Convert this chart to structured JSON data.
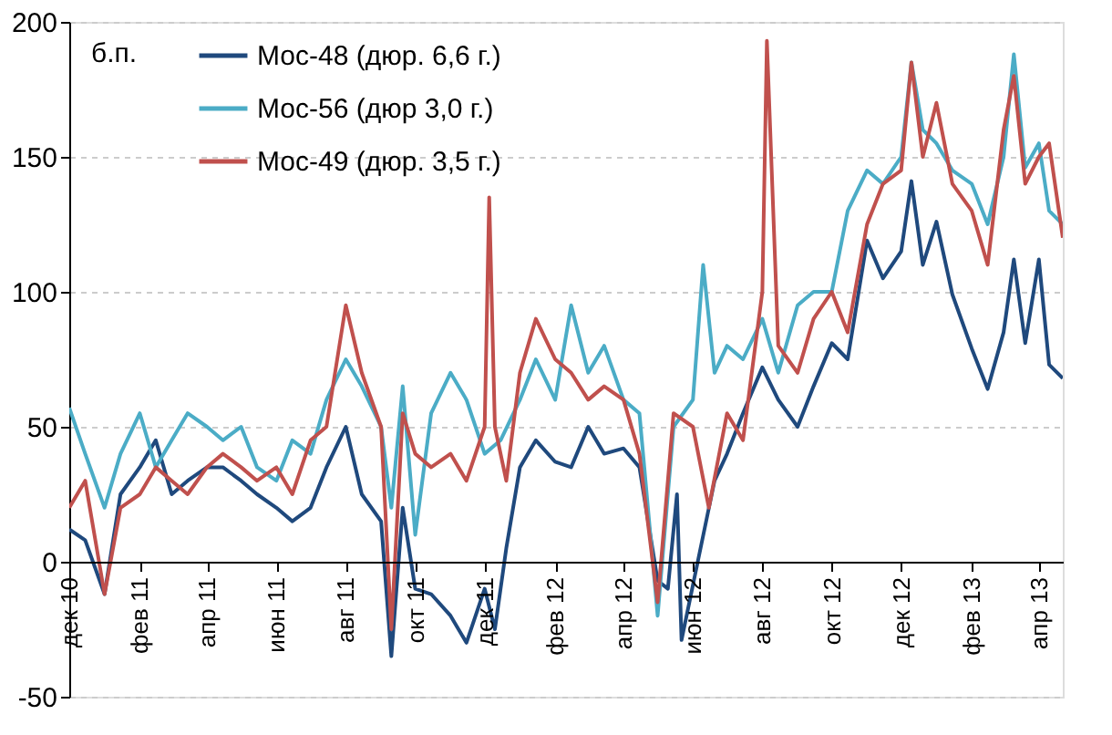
{
  "chart_data": {
    "type": "line",
    "ylabel": "б.п.",
    "xlim": [
      "2010-12-01",
      "2013-04-22"
    ],
    "ylim": [
      -50,
      200
    ],
    "yticks": [
      -50,
      0,
      50,
      100,
      150,
      200
    ],
    "xticks": [
      {
        "value": "2010-12-01",
        "label": "дек 10"
      },
      {
        "value": "2011-02-01",
        "label": "фев 11"
      },
      {
        "value": "2011-04-01",
        "label": "апр 11"
      },
      {
        "value": "2011-06-01",
        "label": "июн 11"
      },
      {
        "value": "2011-08-01",
        "label": "авг 11"
      },
      {
        "value": "2011-10-01",
        "label": "окт 11"
      },
      {
        "value": "2011-12-01",
        "label": "дек 11"
      },
      {
        "value": "2012-02-01",
        "label": "фев 12"
      },
      {
        "value": "2012-04-01",
        "label": "апр 12"
      },
      {
        "value": "2012-06-01",
        "label": "июн 12"
      },
      {
        "value": "2012-08-01",
        "label": "авг 12"
      },
      {
        "value": "2012-10-01",
        "label": "окт 12"
      },
      {
        "value": "2012-12-01",
        "label": "дек 12"
      },
      {
        "value": "2013-02-01",
        "label": "фев 13"
      },
      {
        "value": "2013-04-01",
        "label": "апр 13"
      }
    ],
    "grid": "y",
    "legend": "top left",
    "line_style": "solid",
    "series": [
      {
        "name": "Мос-48 (дюр. 6,6 г.)",
        "color": "#1f497d",
        "x": [
          "2010-12-01",
          "2010-12-15",
          "2011-01-01",
          "2011-01-15",
          "2011-02-01",
          "2011-02-15",
          "2011-03-01",
          "2011-03-15",
          "2011-04-01",
          "2011-04-15",
          "2011-05-01",
          "2011-05-15",
          "2011-06-01",
          "2011-06-15",
          "2011-07-01",
          "2011-07-15",
          "2011-08-01",
          "2011-08-15",
          "2011-09-01",
          "2011-09-10",
          "2011-09-20",
          "2011-10-01",
          "2011-10-15",
          "2011-11-01",
          "2011-11-15",
          "2011-12-01",
          "2011-12-10",
          "2011-12-20",
          "2012-01-01",
          "2012-01-15",
          "2012-02-01",
          "2012-02-15",
          "2012-03-01",
          "2012-03-15",
          "2012-04-01",
          "2012-04-15",
          "2012-05-01",
          "2012-05-10",
          "2012-05-18",
          "2012-05-22",
          "2012-06-20",
          "2012-07-01",
          "2012-07-15",
          "2012-08-01",
          "2012-08-15",
          "2012-09-01",
          "2012-09-15",
          "2012-10-01",
          "2012-10-15",
          "2012-11-01",
          "2012-11-15",
          "2012-12-01",
          "2012-12-10",
          "2012-12-20",
          "2013-01-01",
          "2013-01-15",
          "2013-02-01",
          "2013-02-15",
          "2013-03-01",
          "2013-03-10",
          "2013-03-20",
          "2013-04-01",
          "2013-04-10",
          "2013-04-22"
        ],
        "values": [
          12,
          8,
          -12,
          25,
          35,
          45,
          25,
          30,
          35,
          35,
          30,
          25,
          20,
          15,
          20,
          35,
          50,
          25,
          15,
          -35,
          20,
          -10,
          -12,
          -20,
          -30,
          -10,
          -25,
          5,
          35,
          45,
          37,
          35,
          50,
          40,
          42,
          35,
          -7,
          -10,
          25,
          -29,
          30,
          40,
          55,
          72,
          60,
          50,
          65,
          81,
          75,
          119,
          105,
          115,
          141,
          110,
          126,
          99,
          79,
          64,
          85,
          112,
          81,
          112,
          73,
          68
        ]
      },
      {
        "name": "Мос-56 (дюр 3,0 г.)",
        "color": "#4bacc6",
        "x": [
          "2010-12-01",
          "2010-12-15",
          "2011-01-01",
          "2011-01-15",
          "2011-02-01",
          "2011-02-15",
          "2011-03-01",
          "2011-03-15",
          "2011-04-01",
          "2011-04-15",
          "2011-05-01",
          "2011-05-15",
          "2011-06-01",
          "2011-06-15",
          "2011-07-01",
          "2011-07-15",
          "2011-08-01",
          "2011-08-15",
          "2011-09-01",
          "2011-09-10",
          "2011-09-20",
          "2011-10-01",
          "2011-10-15",
          "2011-11-01",
          "2011-11-15",
          "2011-12-01",
          "2011-12-15",
          "2012-01-01",
          "2012-01-15",
          "2012-02-01",
          "2012-02-15",
          "2012-03-01",
          "2012-03-15",
          "2012-04-01",
          "2012-04-15",
          "2012-05-01",
          "2012-05-15",
          "2012-06-01",
          "2012-06-10",
          "2012-06-20",
          "2012-07-01",
          "2012-07-15",
          "2012-08-01",
          "2012-08-15",
          "2012-09-01",
          "2012-09-15",
          "2012-10-01",
          "2012-10-15",
          "2012-11-01",
          "2012-11-15",
          "2012-12-01",
          "2012-12-10",
          "2012-12-20",
          "2013-01-01",
          "2013-01-15",
          "2013-02-01",
          "2013-02-15",
          "2013-03-01",
          "2013-03-10",
          "2013-03-20",
          "2013-04-01",
          "2013-04-10",
          "2013-04-22"
        ],
        "values": [
          57,
          40,
          20,
          40,
          55,
          35,
          45,
          55,
          50,
          45,
          50,
          35,
          30,
          45,
          40,
          60,
          75,
          65,
          50,
          20,
          65,
          10,
          55,
          70,
          60,
          40,
          45,
          60,
          75,
          60,
          95,
          70,
          80,
          60,
          55,
          -20,
          50,
          60,
          110,
          70,
          80,
          75,
          90,
          70,
          95,
          100,
          100,
          130,
          145,
          140,
          150,
          185,
          160,
          155,
          145,
          140,
          125,
          150,
          188,
          146,
          155,
          130,
          125
        ]
      },
      {
        "name": "Мос-49 (дюр. 3,5 г.)",
        "color": "#c0504d",
        "x": [
          "2010-12-01",
          "2010-12-15",
          "2011-01-01",
          "2011-01-15",
          "2011-02-01",
          "2011-02-15",
          "2011-03-01",
          "2011-03-15",
          "2011-04-01",
          "2011-04-15",
          "2011-05-01",
          "2011-05-15",
          "2011-06-01",
          "2011-06-15",
          "2011-07-01",
          "2011-07-15",
          "2011-08-01",
          "2011-08-15",
          "2011-09-01",
          "2011-09-10",
          "2011-09-20",
          "2011-10-01",
          "2011-10-15",
          "2011-11-01",
          "2011-11-15",
          "2011-12-01",
          "2011-12-05",
          "2011-12-10",
          "2011-12-20",
          "2012-01-01",
          "2012-01-15",
          "2012-02-01",
          "2012-02-15",
          "2012-03-01",
          "2012-03-15",
          "2012-04-01",
          "2012-04-15",
          "2012-05-01",
          "2012-05-15",
          "2012-06-01",
          "2012-06-15",
          "2012-07-01",
          "2012-07-15",
          "2012-08-01",
          "2012-08-05",
          "2012-08-15",
          "2012-09-01",
          "2012-09-15",
          "2012-10-01",
          "2012-10-15",
          "2012-11-01",
          "2012-11-15",
          "2012-12-01",
          "2012-12-10",
          "2012-12-20",
          "2013-01-01",
          "2013-01-15",
          "2013-02-01",
          "2013-02-15",
          "2013-03-01",
          "2013-03-10",
          "2013-03-20",
          "2013-04-01",
          "2013-04-10",
          "2013-04-22"
        ],
        "values": [
          20,
          30,
          -12,
          20,
          25,
          35,
          30,
          25,
          35,
          40,
          35,
          30,
          35,
          25,
          45,
          50,
          95,
          70,
          50,
          -25,
          55,
          40,
          35,
          40,
          30,
          50,
          135,
          50,
          30,
          70,
          90,
          75,
          70,
          60,
          65,
          60,
          40,
          -15,
          55,
          50,
          20,
          55,
          45,
          100,
          193,
          80,
          70,
          90,
          100,
          85,
          125,
          140,
          145,
          185,
          150,
          170,
          140,
          130,
          110,
          160,
          180,
          140,
          150,
          155,
          120
        ]
      }
    ]
  }
}
